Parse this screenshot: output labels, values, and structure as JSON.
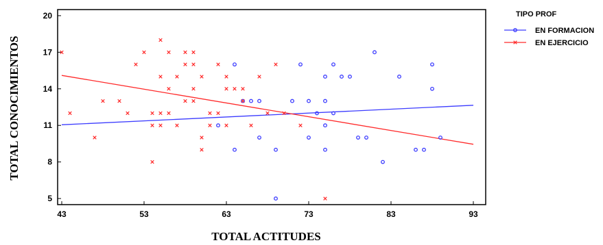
{
  "chart_data": {
    "type": "scatter",
    "xlabel": "TOTAL ACTITUDES",
    "ylabel": "TOTAL CONOCIMIENTOS",
    "xlim": [
      42.5,
      94.5
    ],
    "ylim": [
      4.5,
      20.5
    ],
    "xticks": [
      "43",
      "53",
      "63",
      "73",
      "83",
      "93"
    ],
    "yticks": [
      "5",
      "8",
      "11",
      "14",
      "17",
      "20"
    ],
    "grid": false,
    "legend_position": "top-right",
    "legend_title": "TIPO PROF",
    "series": [
      {
        "name": "EN FORMACION",
        "color": "#3b3bff",
        "marker": "circle",
        "points": [
          [
            64,
            16
          ],
          [
            72,
            16
          ],
          [
            75,
            15
          ],
          [
            76,
            16
          ],
          [
            77,
            15
          ],
          [
            78,
            15
          ],
          [
            81,
            17
          ],
          [
            84,
            15
          ],
          [
            88,
            16
          ],
          [
            88,
            14
          ],
          [
            65,
            13
          ],
          [
            66,
            13
          ],
          [
            67,
            13
          ],
          [
            71,
            13
          ],
          [
            73,
            13
          ],
          [
            75,
            13
          ],
          [
            74,
            12
          ],
          [
            76,
            12
          ],
          [
            75,
            11
          ],
          [
            62,
            11
          ],
          [
            64,
            9
          ],
          [
            67,
            10
          ],
          [
            69,
            9
          ],
          [
            73,
            10
          ],
          [
            75,
            9
          ],
          [
            79,
            10
          ],
          [
            80,
            10
          ],
          [
            82,
            8
          ],
          [
            86,
            9
          ],
          [
            87,
            9
          ],
          [
            89,
            10
          ],
          [
            69,
            5
          ]
        ],
        "trend": [
          [
            43,
            11.05
          ],
          [
            93,
            12.65
          ]
        ]
      },
      {
        "name": "EN EJERCICIO",
        "color": "#ff2a2a",
        "marker": "x",
        "points": [
          [
            43,
            17
          ],
          [
            44,
            12
          ],
          [
            47,
            10
          ],
          [
            48,
            13
          ],
          [
            50,
            13
          ],
          [
            51,
            12
          ],
          [
            52,
            16
          ],
          [
            53,
            17
          ],
          [
            54,
            8
          ],
          [
            54,
            11
          ],
          [
            54,
            12
          ],
          [
            55,
            18
          ],
          [
            55,
            15
          ],
          [
            55,
            12
          ],
          [
            55,
            11
          ],
          [
            56,
            14
          ],
          [
            56,
            17
          ],
          [
            56,
            12
          ],
          [
            57,
            11
          ],
          [
            57,
            15
          ],
          [
            58,
            17
          ],
          [
            58,
            16
          ],
          [
            58,
            13
          ],
          [
            59,
            16
          ],
          [
            59,
            14
          ],
          [
            59,
            17
          ],
          [
            59,
            13
          ],
          [
            60,
            15
          ],
          [
            60,
            10
          ],
          [
            60,
            9
          ],
          [
            61,
            11
          ],
          [
            61,
            12
          ],
          [
            62,
            16
          ],
          [
            62,
            12
          ],
          [
            63,
            15
          ],
          [
            63,
            14
          ],
          [
            63,
            11
          ],
          [
            64,
            14
          ],
          [
            65,
            14
          ],
          [
            65,
            13
          ],
          [
            66,
            11
          ],
          [
            67,
            15
          ],
          [
            68,
            12
          ],
          [
            69,
            16
          ],
          [
            70,
            12
          ],
          [
            72,
            11
          ],
          [
            75,
            5
          ]
        ],
        "trend": [
          [
            43,
            15.1
          ],
          [
            93,
            9.45
          ]
        ]
      }
    ]
  }
}
